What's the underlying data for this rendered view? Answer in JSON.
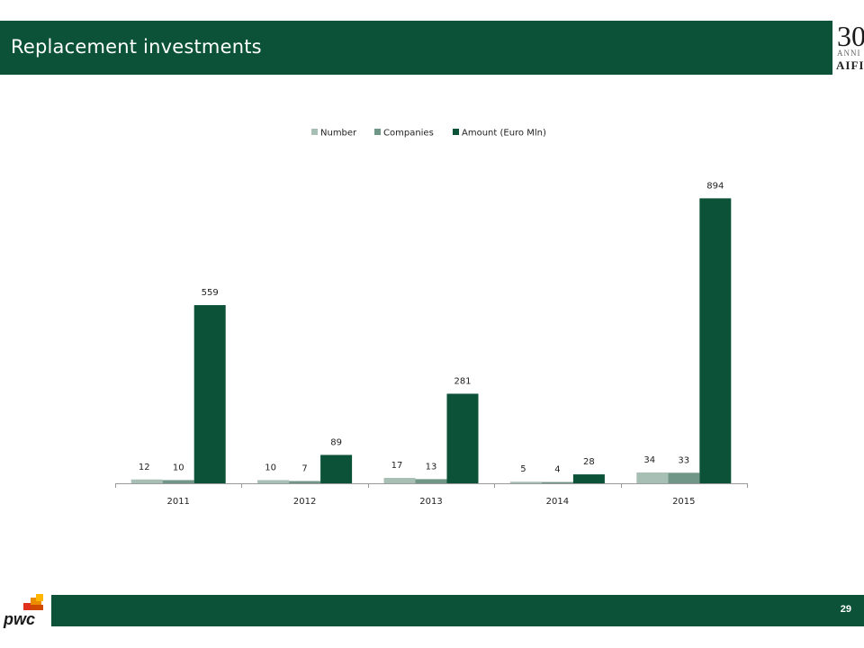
{
  "slide": {
    "title": "Replacement investments",
    "page_number": "29"
  },
  "brand": {
    "number": "30",
    "anni": "ANNI",
    "name": "AIFI"
  },
  "footer": {
    "logo_text": "pwc"
  },
  "colors": {
    "header_green": "#0b5238",
    "number_series": "#a8bfb5",
    "companies_series": "#6f9686",
    "amount_series": "#0b5238"
  },
  "chart_data": {
    "type": "bar",
    "categories": [
      "2011",
      "2012",
      "2013",
      "2014",
      "2015"
    ],
    "series": [
      {
        "name": "Number",
        "values": [
          12,
          10,
          17,
          5,
          34
        ],
        "color": "#a8bfb5"
      },
      {
        "name": "Companies",
        "values": [
          10,
          7,
          13,
          4,
          33
        ],
        "color": "#6f9686"
      },
      {
        "name": "Amount (Euro Mln)",
        "values": [
          559,
          89,
          281,
          28,
          894
        ],
        "color": "#0b5238"
      }
    ],
    "title": "",
    "xlabel": "",
    "ylabel": "",
    "ylim": [
      0,
      960
    ],
    "legend": "top",
    "grid": false
  }
}
